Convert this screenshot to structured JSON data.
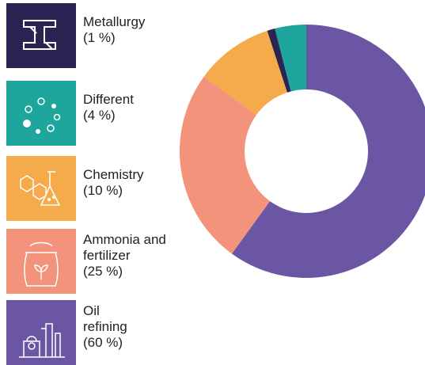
{
  "chart_data": {
    "type": "donut",
    "categories": [
      "Metallurgy",
      "Different",
      "Chemistry",
      "Ammonia and fertilizer",
      "Oil refining"
    ],
    "values": [
      1,
      4,
      10,
      25,
      60
    ],
    "value_labels": [
      "(1 %)",
      "(4 %)",
      "(10 %)",
      "(25 %)",
      "(60 %)"
    ],
    "colors": [
      "#2b2452",
      "#1ea59c",
      "#f5ab4c",
      "#f4937b",
      "#6b56a4"
    ]
  }
}
